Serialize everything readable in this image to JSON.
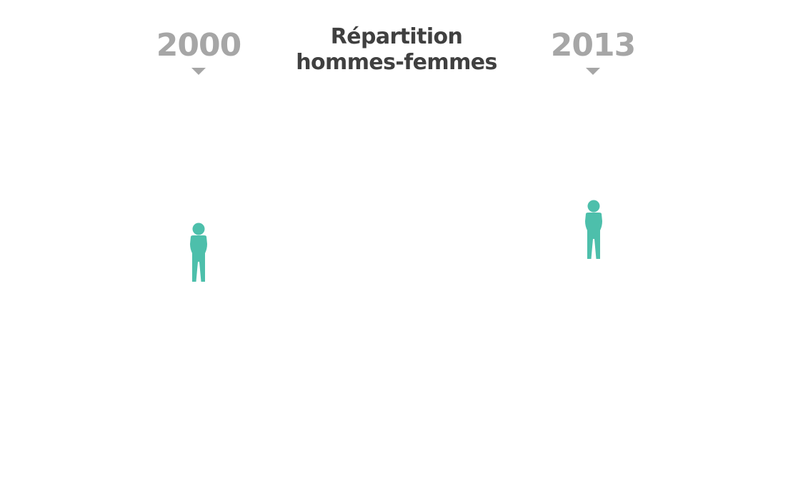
{
  "header": {
    "year_left": "2000",
    "year_right": "2013",
    "title_line1": "Répartition",
    "title_line2": "hommes-femmes"
  },
  "figures": [
    {
      "icon": "person-icon",
      "color": "#4dbfab"
    },
    {
      "icon": "person-icon",
      "color": "#4dbfab"
    }
  ],
  "colors": {
    "year_text": "#a6a6a6",
    "title_text": "#404040",
    "figure": "#4dbfab"
  }
}
